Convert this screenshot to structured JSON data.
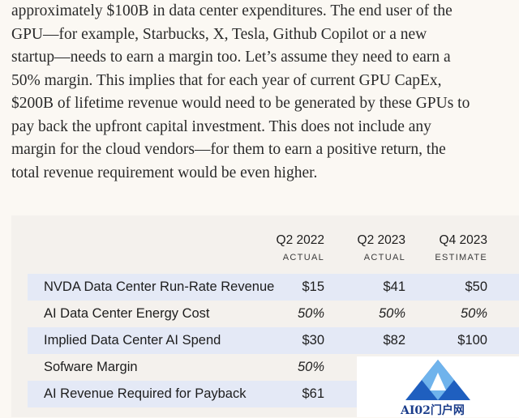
{
  "article": {
    "lines": [
      "approximately $100B in data center expenditures. The end user of the",
      "GPU—for example, Starbucks, X, Tesla, Github Copilot or a new",
      "startup—needs to earn a margin too. Let’s assume they need to earn a",
      "50% margin. This implies that for each year of current GPU CapEx,",
      "$200B of lifetime revenue would need to be generated by these GPUs to",
      "pay back the upfront capital investment. This does not include any",
      "margin for the cloud vendors—for them to earn a positive return, the",
      "total revenue requirement would be even higher."
    ]
  },
  "table": {
    "columns": [
      {
        "period": "Q2 2022",
        "status": "ACTUAL"
      },
      {
        "period": "Q2 2023",
        "status": "ACTUAL"
      },
      {
        "period": "Q4 2023",
        "status": "ESTIMATE"
      }
    ],
    "rows": [
      {
        "label": "NVDA Data Center Run-Rate Revenue",
        "values": [
          "$15",
          "$41",
          "$50"
        ]
      },
      {
        "label": "AI Data Center Energy Cost",
        "values": [
          "50%",
          "50%",
          "50%"
        ]
      },
      {
        "label": "Implied Data Center AI Spend",
        "values": [
          "$30",
          "$82",
          "$100"
        ]
      },
      {
        "label": "Sofware Margin",
        "values": [
          "50%",
          "",
          ""
        ]
      },
      {
        "label": "AI Revenue Required for Payback",
        "values": [
          "$61",
          "",
          ""
        ]
      }
    ],
    "colors": {
      "row_shade": "#e4e9f6",
      "panel_bg": "#f4f1ed"
    }
  },
  "watermark": {
    "text": "AI02门户网",
    "icon": "triangle-logo-icon"
  }
}
